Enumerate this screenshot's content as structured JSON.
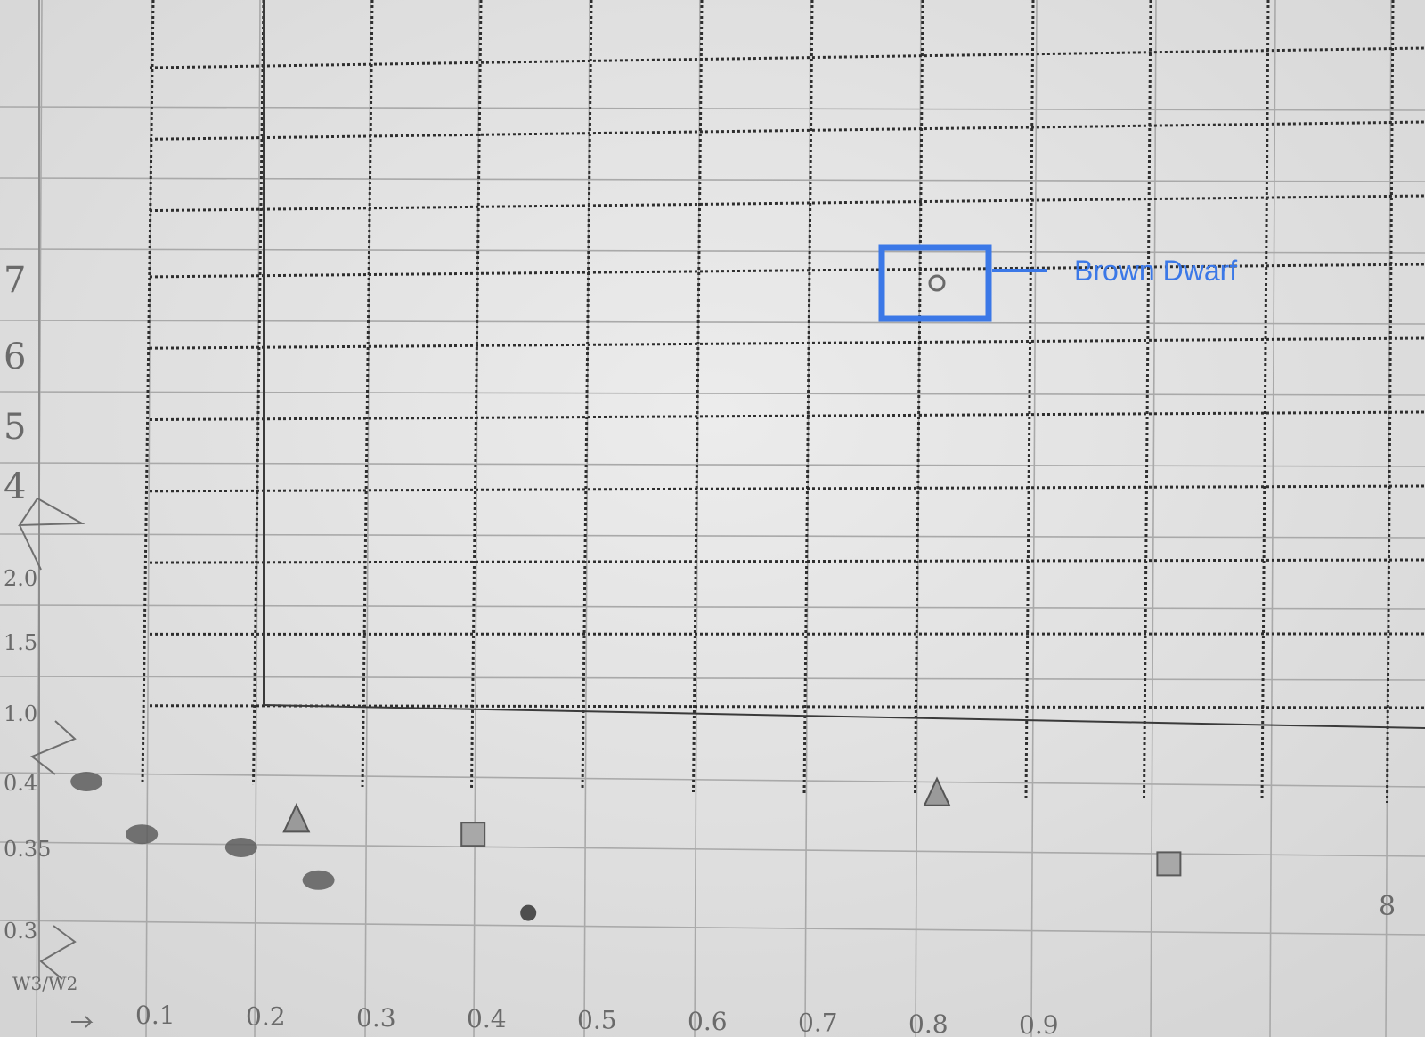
{
  "chart_data": {
    "type": "scatter",
    "title": "",
    "xlabel": "W3/W2",
    "ylabel": "",
    "x_tick_labels": [
      "0.1",
      "0.2",
      "0.3",
      "0.4",
      "0.5",
      "0.6",
      "0.7",
      "0.8",
      "0.9"
    ],
    "y_tick_labels": [
      "0.3",
      "0.35",
      "0.4",
      "1.0",
      "1.5",
      "2.0",
      "4",
      "5",
      "6",
      "7"
    ],
    "page_number": "8",
    "grid": true,
    "series": [
      {
        "points": [
          {
            "x": 0.03,
            "y": 0.4,
            "marker": "filled-oval"
          },
          {
            "x": 0.08,
            "y": 0.36,
            "marker": "filled-oval"
          },
          {
            "x": 0.17,
            "y": 0.35,
            "marker": "filled-oval"
          },
          {
            "x": 0.22,
            "y": 0.37,
            "marker": "triangle"
          },
          {
            "x": 0.24,
            "y": 0.33,
            "marker": "filled-oval"
          },
          {
            "x": 0.38,
            "y": 0.36,
            "marker": "square"
          },
          {
            "x": 0.43,
            "y": 0.31,
            "marker": "filled-dot"
          },
          {
            "x": 0.8,
            "y": 0.39,
            "marker": "triangle"
          },
          {
            "x": 1.01,
            "y": 0.34,
            "marker": "square"
          },
          {
            "x": 0.8,
            "y": 7.0,
            "marker": "open-circle"
          }
        ]
      }
    ],
    "annotations": [
      {
        "text": "Brown Dwarf",
        "target_x": 0.8,
        "target_y": 7.0,
        "color": "#3b78e7"
      }
    ]
  }
}
